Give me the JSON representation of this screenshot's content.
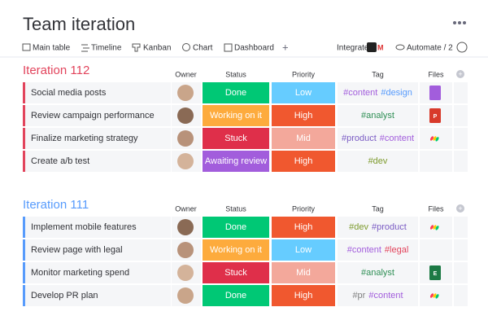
{
  "header": {
    "title": "Team iteration",
    "views": [
      "Main table",
      "Timeline",
      "Kanban",
      "Chart",
      "Dashboard"
    ],
    "add": "+",
    "integrate": "Integrate",
    "automate": "Automate / 2"
  },
  "groups": [
    {
      "title": "Iteration 112",
      "color": "#e2445c",
      "columns": [
        "Owner",
        "Status",
        "Priority",
        "Tag",
        "Files"
      ],
      "rows": [
        {
          "item": "Social media posts",
          "status": {
            "label": "Done",
            "color": "#00c875"
          },
          "priority": {
            "label": "Low",
            "color": "#66ccff"
          },
          "tags": [
            {
              "text": "#content",
              "color": "#a25ddc"
            },
            {
              "text": "#design",
              "color": "#579bfc"
            }
          ],
          "file": {
            "colors": [
              "#a25ddc"
            ]
          }
        },
        {
          "item": "Review campaign performance",
          "status": {
            "label": "Working on it",
            "color": "#fdab3d"
          },
          "priority": {
            "label": "High",
            "color": "#f0582f"
          },
          "tags": [
            {
              "text": "#analyst",
              "color": "#2f8f55"
            }
          ],
          "file": {
            "colors": [
              "#d83a2b"
            ],
            "label": "P"
          }
        },
        {
          "item": "Finalize marketing strategy",
          "status": {
            "label": "Stuck",
            "color": "#df2f4a"
          },
          "priority": {
            "label": "Mid",
            "color": "#f3a89b"
          },
          "tags": [
            {
              "text": "#product",
              "color": "#7b5cc4"
            },
            {
              "text": "#content",
              "color": "#a25ddc"
            }
          ],
          "file": {
            "colors": [
              "#ff3d57",
              "#ffcb00",
              "#00ca72"
            ]
          }
        },
        {
          "item": "Create a/b test",
          "status": {
            "label": "Awaiting review",
            "color": "#a25ddc"
          },
          "priority": {
            "label": "High",
            "color": "#f0582f"
          },
          "tags": [
            {
              "text": "#dev",
              "color": "#7e9b2e"
            }
          ]
        }
      ]
    },
    {
      "title": "Iteration 111",
      "color": "#579bfc",
      "columns": [
        "Owner",
        "Status",
        "Priority",
        "Tag",
        "Files"
      ],
      "rows": [
        {
          "item": "Implement mobile features",
          "status": {
            "label": "Done",
            "color": "#00c875"
          },
          "priority": {
            "label": "High",
            "color": "#f0582f"
          },
          "tags": [
            {
              "text": "#dev",
              "color": "#7e9b2e"
            },
            {
              "text": "#product",
              "color": "#7b5cc4"
            }
          ],
          "file": {
            "colors": [
              "#ff3d57",
              "#ffcb00",
              "#00ca72"
            ]
          }
        },
        {
          "item": "Review page with legal",
          "status": {
            "label": "Working on it",
            "color": "#fdab3d"
          },
          "priority": {
            "label": "Low",
            "color": "#66ccff"
          },
          "tags": [
            {
              "text": "#content",
              "color": "#a25ddc"
            },
            {
              "text": "#legal",
              "color": "#e2445c"
            }
          ]
        },
        {
          "item": "Monitor marketing spend",
          "status": {
            "label": "Stuck",
            "color": "#df2f4a"
          },
          "priority": {
            "label": "Mid",
            "color": "#f3a89b"
          },
          "tags": [
            {
              "text": "#analyst",
              "color": "#2f8f55"
            }
          ],
          "file": {
            "colors": [
              "#1d7a45"
            ],
            "label": "E"
          }
        },
        {
          "item": "Develop PR plan",
          "status": {
            "label": "Done",
            "color": "#00c875"
          },
          "priority": {
            "label": "High",
            "color": "#f0582f"
          },
          "tags": [
            {
              "text": "#pr",
              "color": "#808080"
            },
            {
              "text": "#content",
              "color": "#a25ddc"
            }
          ],
          "file": {
            "colors": [
              "#ff3d57",
              "#ffcb00",
              "#00ca72"
            ]
          }
        }
      ]
    }
  ]
}
